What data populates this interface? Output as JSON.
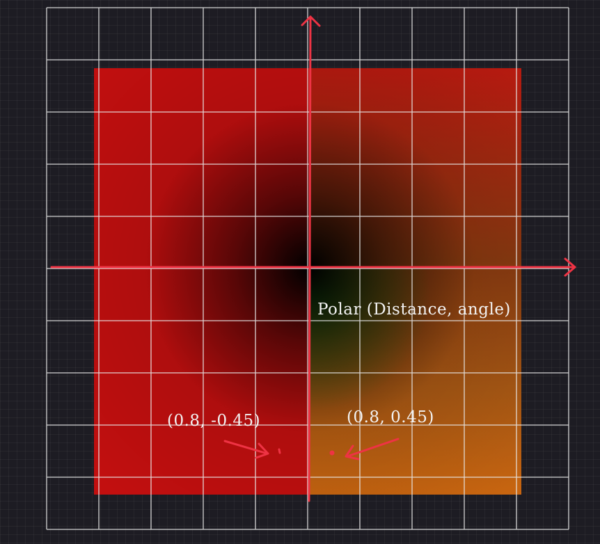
{
  "title_label": "Polar (Distance, angle)",
  "points": [
    {
      "label": "(0.8, -0.45)"
    },
    {
      "label": "(0.8, 0.45)"
    }
  ],
  "colors": {
    "background": "#1d1c23",
    "grid": "#ffffff",
    "axis": "#ee3344",
    "annotation": "#ee3344",
    "text": "#f3f3f3"
  }
}
